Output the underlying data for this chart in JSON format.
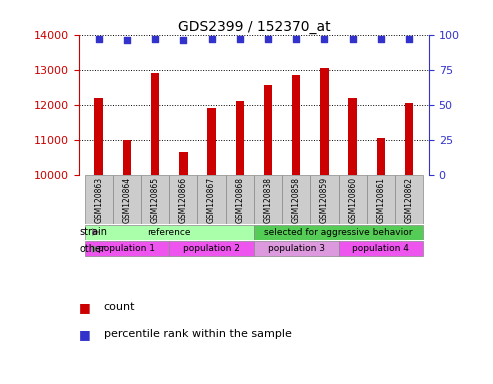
{
  "title": "GDS2399 / 152370_at",
  "samples": [
    "GSM120863",
    "GSM120864",
    "GSM120865",
    "GSM120866",
    "GSM120867",
    "GSM120868",
    "GSM120838",
    "GSM120858",
    "GSM120859",
    "GSM120860",
    "GSM120861",
    "GSM120862"
  ],
  "counts": [
    12200,
    11000,
    12900,
    10650,
    11900,
    12100,
    12550,
    12850,
    13050,
    12200,
    11050,
    12050
  ],
  "percentile_ranks": [
    97,
    96,
    97,
    96,
    97,
    97,
    97,
    97,
    97,
    97,
    97,
    97
  ],
  "ylim_left": [
    10000,
    14000
  ],
  "ylim_right": [
    0,
    100
  ],
  "yticks_left": [
    10000,
    11000,
    12000,
    13000,
    14000
  ],
  "yticks_right": [
    0,
    25,
    50,
    75,
    100
  ],
  "bar_color": "#cc0000",
  "dot_color": "#3333cc",
  "left_tick_color": "#cc0000",
  "right_tick_color": "#3333cc",
  "bar_width": 0.3,
  "strain_groups": [
    {
      "label": "reference",
      "start": 0,
      "end": 6,
      "color": "#aaffaa"
    },
    {
      "label": "selected for aggressive behavior",
      "start": 6,
      "end": 12,
      "color": "#55cc55"
    }
  ],
  "other_groups": [
    {
      "label": "population 1",
      "start": 0,
      "end": 3,
      "color": "#ee55ee"
    },
    {
      "label": "population 2",
      "start": 3,
      "end": 6,
      "color": "#ee55ee"
    },
    {
      "label": "population 3",
      "start": 6,
      "end": 9,
      "color": "#dd99dd"
    },
    {
      "label": "population 4",
      "start": 9,
      "end": 12,
      "color": "#ee55ee"
    }
  ],
  "tick_area_bg": "#cccccc",
  "legend": [
    {
      "color": "#cc0000",
      "label": "count"
    },
    {
      "color": "#3333cc",
      "label": "percentile rank within the sample"
    }
  ],
  "background_color": "#ffffff"
}
